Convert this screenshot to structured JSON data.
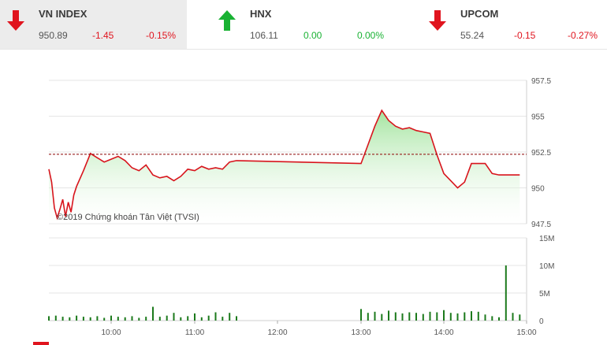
{
  "indices": [
    {
      "name": "VN INDEX",
      "value": "950.89",
      "change": "-1.45",
      "pct": "-0.15%",
      "direction": "down",
      "active": true
    },
    {
      "name": "HNX",
      "value": "106.11",
      "change": "0.00",
      "pct": "0.00%",
      "direction": "up",
      "active": false
    },
    {
      "name": "UPCOM",
      "value": "55.24",
      "change": "-0.15",
      "pct": "-0.27%",
      "direction": "down",
      "active": false
    }
  ],
  "colors": {
    "down": "#e0141e",
    "up": "#19b233",
    "line": "#d8141c",
    "fill": "#9fe39a",
    "volume": "#1c7a1c"
  },
  "chart_data": [
    {
      "type": "area",
      "copyright": "©2019 Chứng khoán Tân Việt (TVSI)",
      "x_ticks": [
        "10:00",
        "11:00",
        "12:00",
        "13:00",
        "14:00",
        "15:00"
      ],
      "ylim": [
        947.5,
        957.5
      ],
      "y_ticks": [
        "957.5",
        "955",
        "952.5",
        "950",
        "947.5"
      ],
      "reference_value": 952.34,
      "x": [
        "09:15",
        "09:17",
        "09:19",
        "09:21",
        "09:23",
        "09:25",
        "09:27",
        "09:29",
        "09:31",
        "09:33",
        "09:35",
        "09:40",
        "09:45",
        "09:50",
        "09:55",
        "10:00",
        "10:05",
        "10:10",
        "10:15",
        "10:20",
        "10:25",
        "10:30",
        "10:35",
        "10:40",
        "10:45",
        "10:50",
        "10:55",
        "11:00",
        "11:05",
        "11:10",
        "11:15",
        "11:20",
        "11:25",
        "11:30",
        "13:00",
        "13:05",
        "13:10",
        "13:15",
        "13:20",
        "13:25",
        "13:30",
        "13:35",
        "13:40",
        "13:45",
        "13:50",
        "13:55",
        "14:00",
        "14:05",
        "14:10",
        "14:15",
        "14:20",
        "14:25",
        "14:30",
        "14:35",
        "14:40",
        "14:45",
        "14:50",
        "14:55"
      ],
      "values": [
        951.3,
        950.4,
        948.6,
        947.9,
        948.5,
        949.2,
        948.0,
        949.0,
        948.3,
        949.5,
        950.1,
        951.2,
        952.4,
        952.1,
        951.8,
        952.0,
        952.2,
        951.9,
        951.4,
        951.2,
        951.6,
        950.9,
        950.7,
        950.8,
        950.5,
        950.8,
        951.3,
        951.2,
        951.5,
        951.3,
        951.4,
        951.3,
        951.8,
        951.9,
        951.7,
        953.0,
        954.3,
        955.4,
        954.7,
        954.3,
        954.1,
        954.2,
        954.0,
        953.9,
        953.8,
        952.3,
        951.0,
        950.5,
        950.0,
        950.4,
        951.7,
        951.7,
        951.7,
        951.0,
        950.9,
        950.9,
        950.9,
        950.9
      ],
      "series": [
        {
          "values_ref": "values"
        }
      ]
    },
    {
      "type": "bar",
      "ylim": [
        0,
        15
      ],
      "y_ticks": [
        "15M",
        "10M",
        "5M",
        "0"
      ],
      "volume_unit": "M",
      "x": [
        "09:15",
        "09:20",
        "09:25",
        "09:30",
        "09:35",
        "09:40",
        "09:45",
        "09:50",
        "09:55",
        "10:00",
        "10:05",
        "10:10",
        "10:15",
        "10:20",
        "10:25",
        "10:30",
        "10:35",
        "10:40",
        "10:45",
        "10:50",
        "10:55",
        "11:00",
        "11:05",
        "11:10",
        "11:15",
        "11:20",
        "11:25",
        "11:30",
        "13:00",
        "13:05",
        "13:10",
        "13:15",
        "13:20",
        "13:25",
        "13:30",
        "13:35",
        "13:40",
        "13:45",
        "13:50",
        "13:55",
        "14:00",
        "14:05",
        "14:10",
        "14:15",
        "14:20",
        "14:25",
        "14:30",
        "14:35",
        "14:40",
        "14:45",
        "14:50",
        "14:55"
      ],
      "values": [
        0.8,
        0.9,
        0.7,
        0.6,
        0.9,
        0.7,
        0.6,
        0.8,
        0.5,
        0.9,
        0.7,
        0.6,
        0.8,
        0.5,
        0.7,
        2.5,
        0.7,
        0.9,
        1.4,
        0.6,
        0.8,
        1.3,
        0.6,
        0.9,
        1.5,
        0.7,
        1.4,
        0.8,
        2.1,
        1.4,
        1.6,
        1.2,
        1.8,
        1.5,
        1.3,
        1.5,
        1.4,
        1.2,
        1.6,
        1.5,
        1.9,
        1.4,
        1.3,
        1.5,
        1.7,
        1.6,
        1.1,
        0.8,
        0.6,
        10.0,
        1.4,
        1.1
      ]
    }
  ]
}
